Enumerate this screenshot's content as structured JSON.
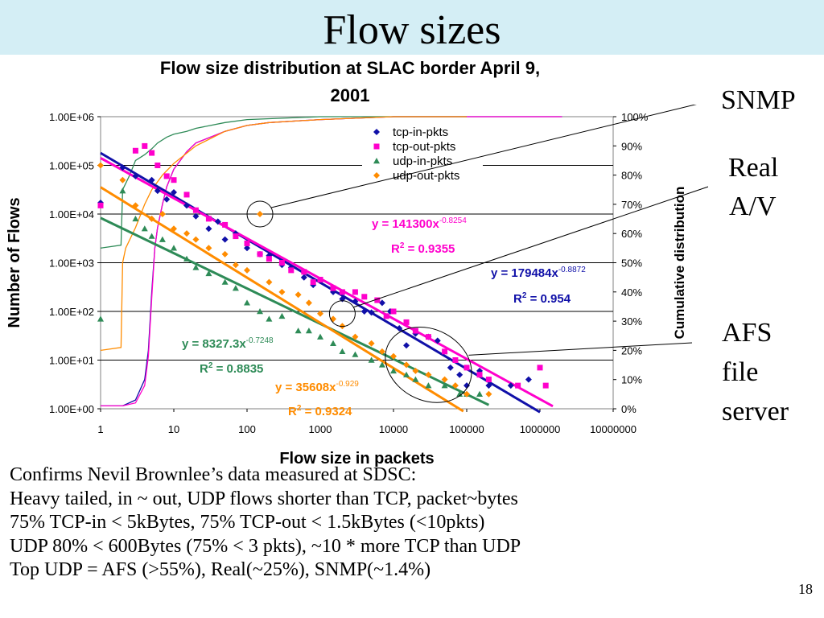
{
  "slide": {
    "title": "Flow sizes",
    "page_number": "18",
    "callouts": {
      "snmp": "SNMP",
      "real": "Real",
      "av": "A/V",
      "afs": "AFS",
      "file": "file",
      "server": "server"
    },
    "bullets": [
      "Confirms Nevil Brownlee’s data measured at SDSC:",
      "Heavy tailed, in ~ out, UDP flows shorter than TCP, packet~bytes",
      "75% TCP-in < 5kBytes, 75% TCP-out < 1.5kBytes (<10pkts)",
      "UDP 80% < 600Bytes (75% < 3 pkts), ~10 * more TCP than UDP",
      "Top UDP = AFS (>55%), Real(~25%), SNMP(~1.4%)"
    ]
  },
  "chart_data": {
    "type": "scatter",
    "title_lines": [
      "Flow size distribution at SLAC border April 9,",
      "2001"
    ],
    "xlabel": "Flow size in packets",
    "ylabel": "Number of Flows",
    "y2label": "Cumulative distribution",
    "x_scale": "log",
    "y_scale": "log",
    "xlim": [
      1,
      10000000
    ],
    "ylim": [
      1,
      1000000
    ],
    "y2lim": [
      0,
      100
    ],
    "x_tick_labels": [
      "1",
      "10",
      "100",
      "1000",
      "10000",
      "100000",
      "1000000",
      "10000000"
    ],
    "y_tick_labels": [
      "1.00E+00",
      "1.00E+01",
      "1.00E+02",
      "1.00E+03",
      "1.00E+04",
      "1.00E+05",
      "1.00E+06"
    ],
    "y2_tick_labels": [
      "0%",
      "10%",
      "20%",
      "30%",
      "40%",
      "50%",
      "60%",
      "70%",
      "80%",
      "90%",
      "100%"
    ],
    "grid": "horizontal",
    "legend_position": "top-right",
    "series": [
      {
        "name": "tcp-in-pkts",
        "color": "#1010a8",
        "marker": "diamond",
        "points": [
          [
            1,
            17000
          ],
          [
            2,
            90000
          ],
          [
            3,
            60000
          ],
          [
            5,
            50000
          ],
          [
            6,
            30000
          ],
          [
            8,
            20000
          ],
          [
            10,
            28000
          ],
          [
            15,
            15000
          ],
          [
            20,
            9000
          ],
          [
            30,
            5000
          ],
          [
            40,
            7000
          ],
          [
            50,
            3000
          ],
          [
            70,
            4000
          ],
          [
            100,
            2000
          ],
          [
            150,
            1500
          ],
          [
            200,
            1400
          ],
          [
            300,
            900
          ],
          [
            400,
            800
          ],
          [
            600,
            500
          ],
          [
            800,
            350
          ],
          [
            1000,
            420
          ],
          [
            1500,
            250
          ],
          [
            2000,
            180
          ],
          [
            3000,
            160
          ],
          [
            4000,
            100
          ],
          [
            5000,
            95
          ],
          [
            7000,
            150
          ],
          [
            9000,
            100
          ],
          [
            12000,
            45
          ],
          [
            15000,
            20
          ],
          [
            20000,
            35
          ],
          [
            30000,
            30
          ],
          [
            40000,
            25
          ],
          [
            60000,
            7
          ],
          [
            80000,
            5
          ],
          [
            100000,
            3
          ],
          [
            150000,
            6
          ],
          [
            200000,
            3
          ],
          [
            400000,
            3
          ],
          [
            700000,
            4
          ]
        ]
      },
      {
        "name": "tcp-out-pkts",
        "color": "#ff00cc",
        "marker": "square",
        "points": [
          [
            1,
            15000
          ],
          [
            3,
            200000
          ],
          [
            4,
            250000
          ],
          [
            5,
            180000
          ],
          [
            6,
            100000
          ],
          [
            8,
            60000
          ],
          [
            10,
            50000
          ],
          [
            15,
            25000
          ],
          [
            20,
            12000
          ],
          [
            30,
            8000
          ],
          [
            50,
            6000
          ],
          [
            70,
            3500
          ],
          [
            100,
            2500
          ],
          [
            150,
            1500
          ],
          [
            200,
            1200
          ],
          [
            300,
            1000
          ],
          [
            400,
            700
          ],
          [
            600,
            650
          ],
          [
            800,
            400
          ],
          [
            1000,
            450
          ],
          [
            1500,
            300
          ],
          [
            2000,
            250
          ],
          [
            3000,
            250
          ],
          [
            4000,
            200
          ],
          [
            6000,
            170
          ],
          [
            8000,
            80
          ],
          [
            10000,
            100
          ],
          [
            15000,
            60
          ],
          [
            20000,
            40
          ],
          [
            30000,
            30
          ],
          [
            50000,
            15
          ],
          [
            70000,
            10
          ],
          [
            100000,
            7
          ],
          [
            150000,
            5
          ],
          [
            200000,
            4
          ],
          [
            500000,
            3
          ],
          [
            1000000,
            7
          ],
          [
            1200000,
            3
          ]
        ]
      },
      {
        "name": "udp-in-pkts",
        "color": "#2e8b57",
        "marker": "triangle",
        "points": [
          [
            1,
            70
          ],
          [
            2,
            30000
          ],
          [
            3,
            8000
          ],
          [
            4,
            5000
          ],
          [
            5,
            3500
          ],
          [
            7,
            3000
          ],
          [
            10,
            2000
          ],
          [
            15,
            1200
          ],
          [
            20,
            800
          ],
          [
            30,
            600
          ],
          [
            50,
            400
          ],
          [
            70,
            300
          ],
          [
            100,
            150
          ],
          [
            150,
            100
          ],
          [
            200,
            70
          ],
          [
            300,
            80
          ],
          [
            500,
            40
          ],
          [
            700,
            40
          ],
          [
            1000,
            30
          ],
          [
            1500,
            22
          ],
          [
            2000,
            15
          ],
          [
            3000,
            13
          ],
          [
            5000,
            10
          ],
          [
            7000,
            8
          ],
          [
            10000,
            6
          ],
          [
            15000,
            5
          ],
          [
            20000,
            4
          ],
          [
            30000,
            3
          ],
          [
            50000,
            3
          ],
          [
            80000,
            2
          ],
          [
            100000,
            2
          ],
          [
            150000,
            2
          ]
        ]
      },
      {
        "name": "udp-out-pkts",
        "color": "#ff8c00",
        "marker": "diamond",
        "points": [
          [
            1,
            100000
          ],
          [
            2,
            50000
          ],
          [
            3,
            15000
          ],
          [
            5,
            8000
          ],
          [
            7,
            10000
          ],
          [
            10,
            5000
          ],
          [
            15,
            4000
          ],
          [
            20,
            3000
          ],
          [
            30,
            2000
          ],
          [
            50,
            1500
          ],
          [
            70,
            900
          ],
          [
            100,
            700
          ],
          [
            150,
            10000
          ],
          [
            200,
            400
          ],
          [
            300,
            250
          ],
          [
            500,
            220
          ],
          [
            700,
            150
          ],
          [
            1000,
            90
          ],
          [
            1500,
            70
          ],
          [
            2000,
            50
          ],
          [
            3000,
            30
          ],
          [
            5000,
            22
          ],
          [
            7000,
            15
          ],
          [
            10000,
            12
          ],
          [
            15000,
            8
          ],
          [
            20000,
            6
          ],
          [
            30000,
            5
          ],
          [
            50000,
            4
          ],
          [
            70000,
            3
          ],
          [
            100000,
            2
          ],
          [
            200000,
            2
          ]
        ]
      }
    ],
    "cumulative": [
      {
        "series": "tcp-in-pkts",
        "color": "#1010a8",
        "x": [
          1,
          2,
          3,
          4,
          4.5,
          5,
          5.5,
          6,
          7,
          8,
          10,
          15,
          20,
          50,
          100,
          200,
          1000,
          10000,
          100000,
          2000000
        ],
        "y": [
          1,
          1,
          3,
          10,
          20,
          40,
          55,
          62,
          70,
          76,
          82,
          88,
          91,
          95,
          97,
          98,
          99,
          100,
          100,
          100
        ]
      },
      {
        "series": "tcp-out-pkts",
        "color": "#ff00cc",
        "x": [
          1,
          2,
          3,
          4,
          4.5,
          5,
          5.5,
          6,
          7,
          8,
          10,
          15,
          20,
          50,
          100,
          200,
          1000,
          10000,
          100000,
          2000000
        ],
        "y": [
          1,
          1,
          2,
          8,
          18,
          38,
          55,
          62,
          70,
          76,
          82,
          88,
          91,
          95,
          97,
          98,
          99,
          100,
          100,
          100
        ]
      },
      {
        "series": "udp-in-pkts",
        "color": "#2e8b57",
        "x": [
          1,
          1.9,
          2,
          2.5,
          3,
          4,
          5,
          6,
          8,
          10,
          15,
          20,
          50,
          100,
          1000,
          10000,
          100000
        ],
        "y": [
          55,
          56,
          75,
          80,
          85,
          87,
          89,
          91,
          93,
          94,
          95,
          96,
          98,
          99,
          100,
          100,
          100
        ]
      },
      {
        "series": "udp-out-pkts",
        "color": "#ff8c00",
        "x": [
          1,
          1.9,
          2,
          2.2,
          3,
          4,
          5,
          7,
          10,
          20,
          50,
          100,
          200,
          1000,
          10000,
          100000
        ],
        "y": [
          20,
          21,
          50,
          55,
          62,
          70,
          75,
          80,
          84,
          90,
          95,
          97,
          98,
          99,
          100,
          100
        ]
      }
    ],
    "trendlines": [
      {
        "series": "tcp-in-pkts",
        "color": "#1010a8",
        "a": 179484,
        "b": -0.8872,
        "x_range": [
          1,
          1000000
        ],
        "equation": "y = 179484x",
        "exponent": "-0.8872",
        "r2_prefix": "R",
        "r2_value": " = 0.954"
      },
      {
        "series": "tcp-out-pkts",
        "color": "#ff00cc",
        "a": 141300,
        "b": -0.8254,
        "x_range": [
          1,
          1500000
        ],
        "equation": "y = 141300x",
        "exponent": "-0.8254",
        "r2_prefix": "R",
        "r2_value": " = 0.9355"
      },
      {
        "series": "udp-in-pkts",
        "color": "#2e8b57",
        "a": 8327.3,
        "b": -0.7248,
        "x_range": [
          1,
          200000
        ],
        "equation": "y = 8327.3x",
        "exponent": "-0.7248",
        "r2_prefix": "R",
        "r2_value": " = 0.8835"
      },
      {
        "series": "udp-out-pkts",
        "color": "#ff8c00",
        "a": 35608,
        "b": -0.929,
        "x_range": [
          1,
          90000
        ],
        "equation": "y = 35608x",
        "exponent": "-0.929",
        "r2_prefix": "R",
        "r2_value": " = 0.9324"
      }
    ]
  }
}
